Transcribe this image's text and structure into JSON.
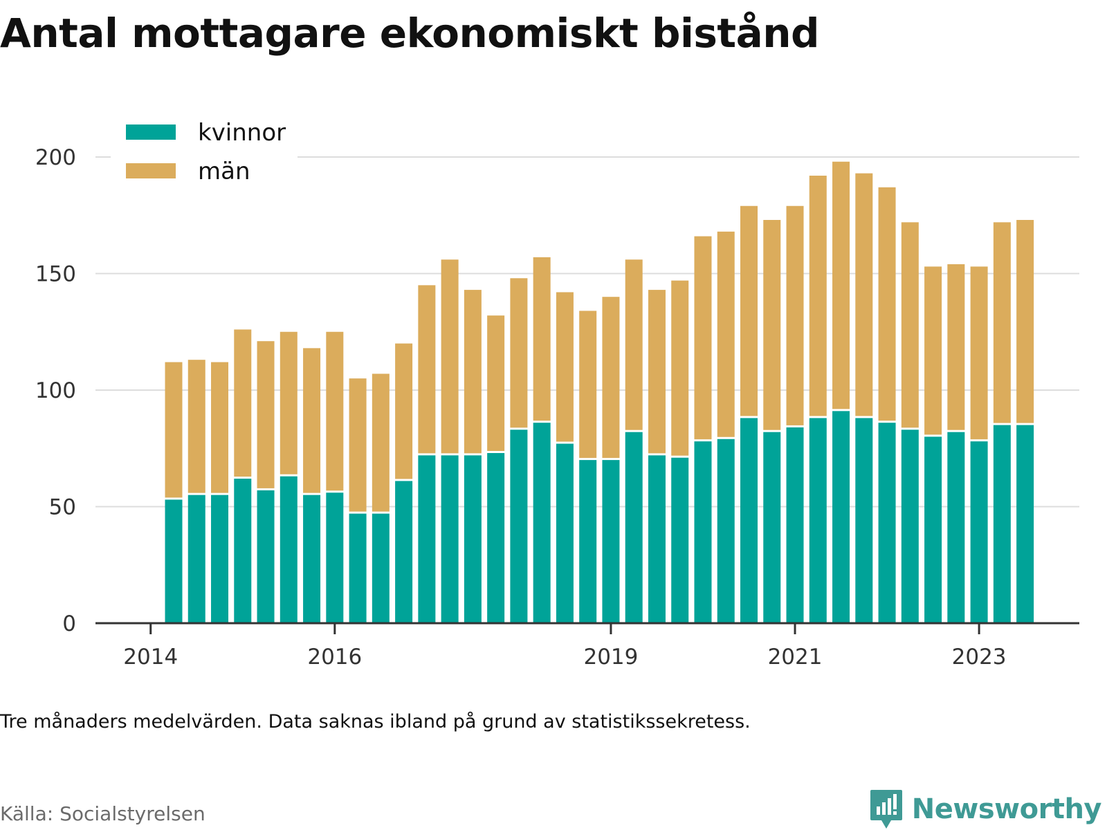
{
  "title": "Antal mottagare ekonomiskt bistånd",
  "note": "Tre månaders medelvärden. Data saknas ibland på grund av statistikssekretess.",
  "source": "Källa: Socialstyrelsen",
  "brand": "Newsworthy",
  "colors": {
    "kvinnor": "#00a398",
    "man": "#dbac5c",
    "grid": "#dddddd",
    "axis": "#333333",
    "brand": "#3f9a95"
  },
  "chart_data": {
    "type": "bar",
    "stacked": true,
    "x_ticks": [
      "2014",
      "2016",
      "2019",
      "2021",
      "2023"
    ],
    "y_ticks": [
      "0",
      "50",
      "100",
      "150",
      "200"
    ],
    "ylim": [
      0,
      200
    ],
    "grid": true,
    "legend": "top-left",
    "series": [
      {
        "name": "kvinnor",
        "values": [
          53,
          55,
          55,
          62,
          57,
          63,
          55,
          56,
          47,
          47,
          61,
          72,
          72,
          72,
          73,
          83,
          86,
          77,
          70,
          70,
          82,
          72,
          71,
          78,
          79,
          88,
          82,
          84,
          88,
          91,
          88,
          86,
          83,
          80,
          82,
          78,
          85,
          85
        ]
      },
      {
        "name": "män",
        "values": [
          59,
          58,
          57,
          64,
          64,
          62,
          63,
          69,
          58,
          60,
          59,
          73,
          84,
          71,
          59,
          65,
          71,
          65,
          64,
          70,
          74,
          71,
          76,
          88,
          89,
          91,
          91,
          95,
          104,
          107,
          105,
          101,
          89,
          73,
          72,
          75,
          87,
          88
        ]
      }
    ]
  }
}
